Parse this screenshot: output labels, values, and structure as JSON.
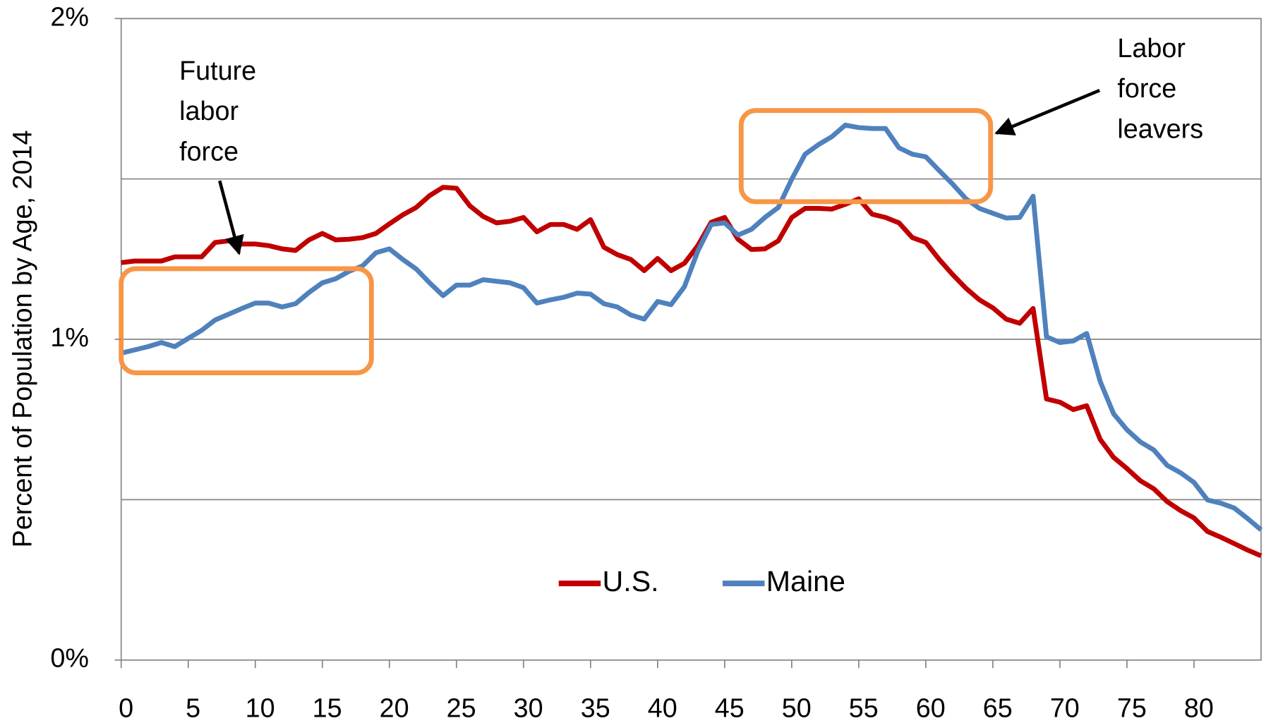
{
  "chart_data": {
    "type": "line",
    "y_label": "Percent of Population by Age, 2014",
    "x": [
      0,
      1,
      2,
      3,
      4,
      5,
      6,
      7,
      8,
      9,
      10,
      11,
      12,
      13,
      14,
      15,
      16,
      17,
      18,
      19,
      20,
      21,
      22,
      23,
      24,
      25,
      26,
      27,
      28,
      29,
      30,
      31,
      32,
      33,
      34,
      35,
      36,
      37,
      38,
      39,
      40,
      41,
      42,
      43,
      44,
      45,
      46,
      47,
      48,
      49,
      50,
      51,
      52,
      53,
      54,
      55,
      56,
      57,
      58,
      59,
      60,
      61,
      62,
      63,
      64,
      65,
      66,
      67,
      68,
      69,
      70,
      71,
      72,
      73,
      74,
      75,
      76,
      77,
      78,
      79,
      80,
      81,
      82,
      83,
      84,
      85
    ],
    "series": [
      {
        "name": "U.S.",
        "color": "#c00000",
        "values": [
          1.239,
          1.244,
          1.244,
          1.244,
          1.257,
          1.257,
          1.257,
          1.302,
          1.307,
          1.297,
          1.297,
          1.292,
          1.282,
          1.277,
          1.31,
          1.33,
          1.31,
          1.312,
          1.317,
          1.33,
          1.36,
          1.388,
          1.411,
          1.448,
          1.474,
          1.471,
          1.416,
          1.383,
          1.363,
          1.368,
          1.38,
          1.335,
          1.358,
          1.358,
          1.343,
          1.373,
          1.287,
          1.264,
          1.249,
          1.214,
          1.252,
          1.214,
          1.237,
          1.292,
          1.365,
          1.38,
          1.312,
          1.28,
          1.282,
          1.307,
          1.38,
          1.408,
          1.408,
          1.406,
          1.421,
          1.438,
          1.39,
          1.38,
          1.363,
          1.317,
          1.302,
          1.249,
          1.202,
          1.159,
          1.123,
          1.098,
          1.063,
          1.05,
          1.096,
          0.814,
          0.804,
          0.781,
          0.793,
          0.688,
          0.632,
          0.597,
          0.559,
          0.534,
          0.494,
          0.466,
          0.443,
          0.401,
          0.383,
          0.363,
          0.343,
          0.325
        ]
      },
      {
        "name": "Maine",
        "color": "#4f81bd",
        "values": [
          0.957,
          0.967,
          0.977,
          0.99,
          0.977,
          1.003,
          1.028,
          1.06,
          1.078,
          1.096,
          1.113,
          1.113,
          1.101,
          1.111,
          1.146,
          1.176,
          1.189,
          1.212,
          1.229,
          1.27,
          1.282,
          1.249,
          1.219,
          1.176,
          1.136,
          1.169,
          1.169,
          1.186,
          1.181,
          1.176,
          1.161,
          1.113,
          1.123,
          1.131,
          1.144,
          1.141,
          1.111,
          1.101,
          1.076,
          1.063,
          1.118,
          1.108,
          1.164,
          1.275,
          1.358,
          1.363,
          1.325,
          1.343,
          1.38,
          1.411,
          1.499,
          1.577,
          1.607,
          1.632,
          1.668,
          1.66,
          1.657,
          1.657,
          1.597,
          1.577,
          1.569,
          1.526,
          1.484,
          1.438,
          1.408,
          1.393,
          1.378,
          1.38,
          1.446,
          1.008,
          0.99,
          0.995,
          1.018,
          0.869,
          0.768,
          0.718,
          0.68,
          0.655,
          0.607,
          0.584,
          0.554,
          0.499,
          0.489,
          0.474,
          0.441,
          0.406
        ]
      }
    ],
    "xlim": [
      0,
      85
    ],
    "xticks": [
      0,
      5,
      10,
      15,
      20,
      25,
      30,
      35,
      40,
      45,
      50,
      55,
      60,
      65,
      70,
      75,
      80
    ],
    "ylim": [
      0,
      2
    ],
    "yticks": [
      {
        "value": 0,
        "label": "0%"
      },
      {
        "value": 1,
        "label": "1%"
      },
      {
        "value": 2,
        "label": "2%"
      }
    ],
    "ygrid": [
      0.5,
      1,
      1.5,
      2
    ],
    "legend": "bottom",
    "annotations": [
      {
        "lines": [
          "Future",
          "labor",
          "force"
        ]
      },
      {
        "lines": [
          "Labor",
          "force",
          "leavers"
        ]
      }
    ]
  }
}
